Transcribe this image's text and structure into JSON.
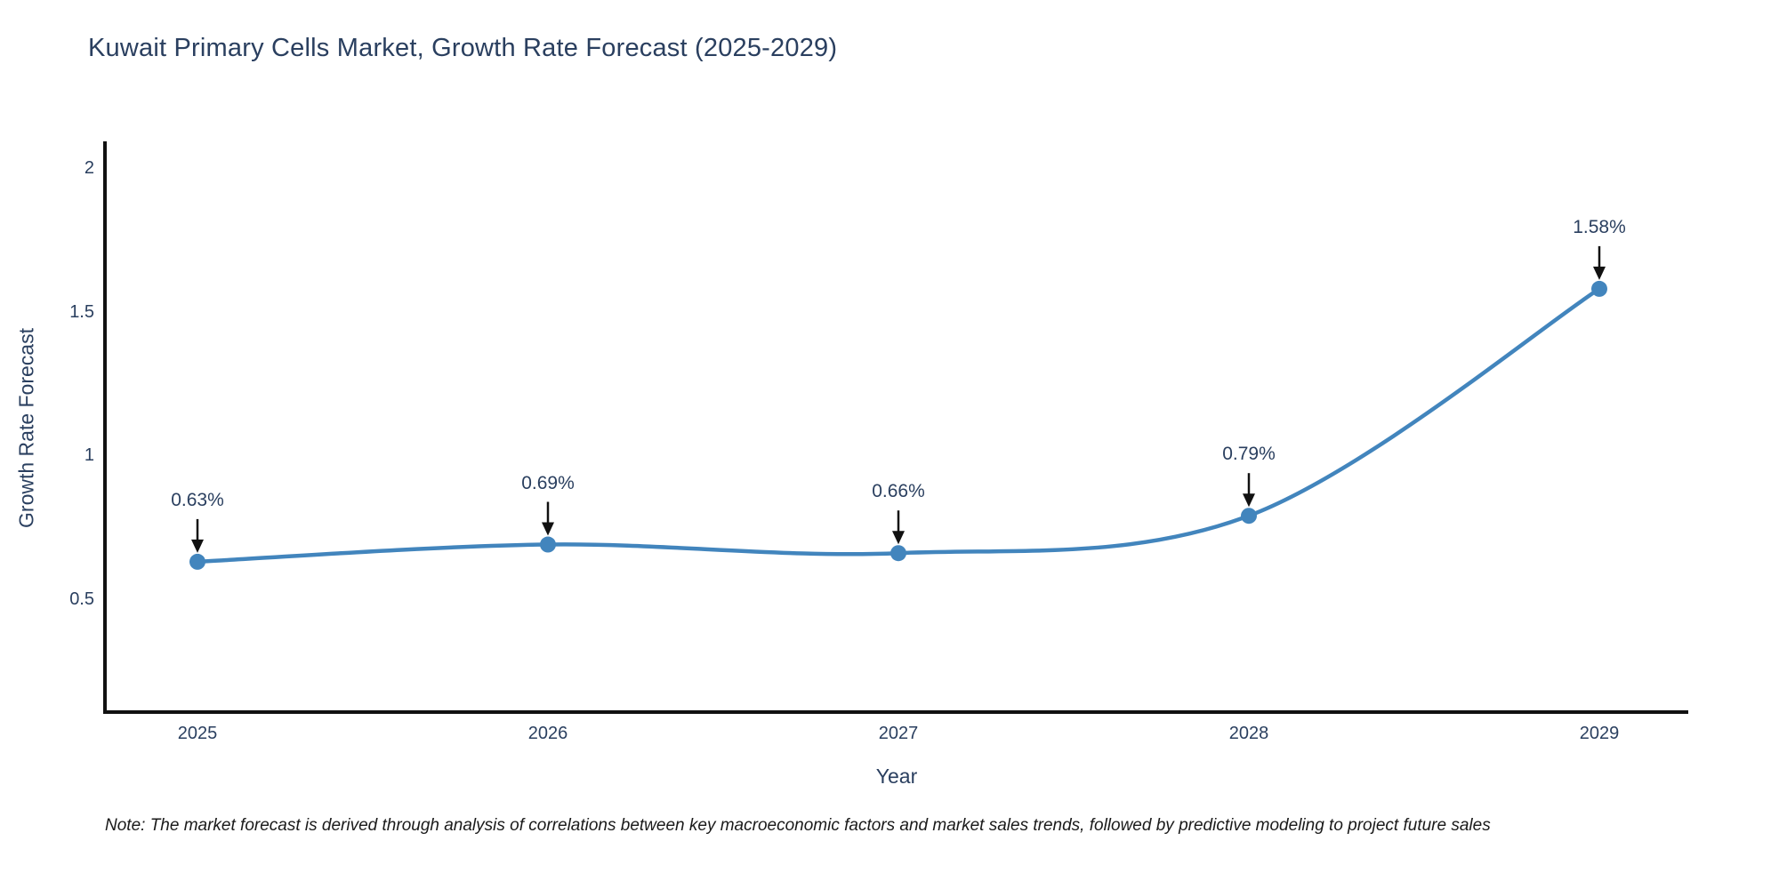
{
  "chart_data": {
    "type": "line",
    "title": "Kuwait Primary Cells Market, Growth Rate Forecast (2025-2029)",
    "xlabel": "Year",
    "ylabel": "Growth Rate Forecast",
    "categories": [
      "2025",
      "2026",
      "2027",
      "2028",
      "2029"
    ],
    "values": [
      0.63,
      0.69,
      0.66,
      0.79,
      1.58
    ],
    "point_labels": [
      "0.63%",
      "0.69%",
      "0.66%",
      "0.79%",
      "1.58%"
    ],
    "ytick_values": [
      2,
      1.5,
      1,
      0.5
    ],
    "ytick_labels": [
      "2",
      "1.5",
      "1",
      "0.5"
    ],
    "ylim": [
      0.1,
      2.1
    ],
    "grid": false,
    "legend": "none",
    "line_smooth": true,
    "line_color": "#4285bd",
    "marker_color": "#4285bd",
    "arrow_color": "#111111",
    "axis_line_color": "#111111"
  },
  "note": "Note: The market forecast is derived through analysis of correlations between key macroeconomic factors and market sales trends, followed by predictive modeling to project future sales"
}
